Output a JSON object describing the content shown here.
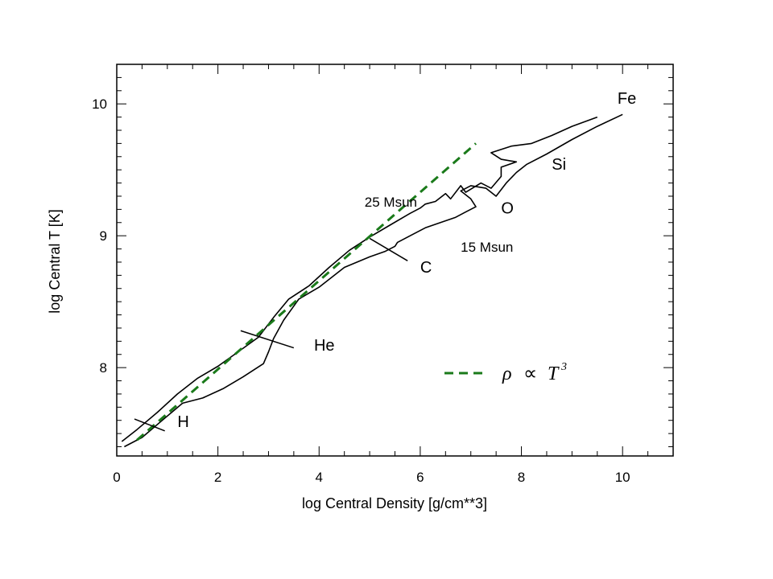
{
  "chart_data": {
    "type": "line",
    "xlabel": "log Central Density [g/cm**3]",
    "ylabel": "log Central T [K]",
    "xlim": [
      0,
      11
    ],
    "ylim": [
      7.33,
      10.3
    ],
    "x_ticks": [
      0,
      2,
      4,
      6,
      8,
      10
    ],
    "y_ticks": [
      8,
      9,
      10
    ],
    "x_tick_labels": [
      "0",
      "2",
      "4",
      "6",
      "8",
      "10"
    ],
    "y_tick_labels": [
      "8",
      "9",
      "10"
    ],
    "grid": false,
    "series": [
      {
        "name": "25 Msun",
        "color": "#000000",
        "x": [
          0.1,
          0.4,
          0.8,
          1.2,
          1.6,
          2.0,
          2.4,
          2.8,
          3.1,
          3.4,
          3.8,
          4.2,
          4.6,
          5.0,
          5.4,
          5.8,
          6.0,
          6.1,
          6.3,
          6.5,
          6.6,
          6.8,
          6.9,
          7.2,
          7.4,
          7.6,
          7.6,
          7.9,
          7.6,
          7.4,
          7.8,
          8.2,
          8.6,
          9.0,
          9.5
        ],
        "y": [
          7.44,
          7.53,
          7.66,
          7.8,
          7.92,
          8.01,
          8.12,
          8.23,
          8.38,
          8.52,
          8.62,
          8.76,
          8.89,
          8.99,
          9.08,
          9.17,
          9.21,
          9.24,
          9.26,
          9.32,
          9.28,
          9.38,
          9.33,
          9.4,
          9.36,
          9.45,
          9.52,
          9.56,
          9.58,
          9.63,
          9.68,
          9.7,
          9.76,
          9.83,
          9.9
        ]
      },
      {
        "name": "15 Msun",
        "color": "#000000",
        "x": [
          0.15,
          0.5,
          0.9,
          1.3,
          1.7,
          2.1,
          2.5,
          2.9,
          3.0,
          3.1,
          3.3,
          3.6,
          4.0,
          4.5,
          5.0,
          5.3,
          5.5,
          5.55,
          5.8,
          6.1,
          6.4,
          6.7,
          6.9,
          7.1,
          7.0,
          6.8,
          7.0,
          7.3,
          7.5,
          7.7,
          7.9,
          8.1,
          8.5,
          9.0,
          9.5,
          10.0
        ],
        "y": [
          7.4,
          7.47,
          7.6,
          7.73,
          7.77,
          7.84,
          7.93,
          8.03,
          8.12,
          8.22,
          8.36,
          8.52,
          8.61,
          8.76,
          8.84,
          8.88,
          8.92,
          8.95,
          9.0,
          9.06,
          9.1,
          9.14,
          9.18,
          9.22,
          9.28,
          9.34,
          9.38,
          9.36,
          9.3,
          9.4,
          9.48,
          9.54,
          9.62,
          9.73,
          9.83,
          9.92
        ]
      },
      {
        "name": "ρ ∝ T³",
        "color": "#1a7a1a",
        "dashed": true,
        "x": [
          0.4,
          7.1
        ],
        "y": [
          7.45,
          9.7
        ]
      }
    ],
    "annotations": [
      {
        "text": "H",
        "x": 1.2,
        "y": 7.55
      },
      {
        "text": "He",
        "x": 3.9,
        "y": 8.13
      },
      {
        "text": "C",
        "x": 6.0,
        "y": 8.72
      },
      {
        "text": "O",
        "x": 7.6,
        "y": 9.17
      },
      {
        "text": "Si",
        "x": 8.6,
        "y": 9.5
      },
      {
        "text": "Fe",
        "x": 9.9,
        "y": 10.0
      },
      {
        "text": "25 Msun",
        "x": 4.9,
        "y": 9.22
      },
      {
        "text": "15 Msun",
        "x": 6.8,
        "y": 8.88
      }
    ],
    "burning_marks": [
      {
        "x1": 0.35,
        "y1": 7.61,
        "x2": 0.95,
        "y2": 7.52
      },
      {
        "x1": 2.45,
        "y1": 8.28,
        "x2": 3.5,
        "y2": 8.15
      },
      {
        "x1": 5.0,
        "y1": 8.98,
        "x2": 5.75,
        "y2": 8.81
      }
    ],
    "legend": {
      "position": "right-middle",
      "label_rho": "ρ",
      "label_prop": "∝",
      "label_T": "T",
      "label_exp": "3"
    }
  }
}
